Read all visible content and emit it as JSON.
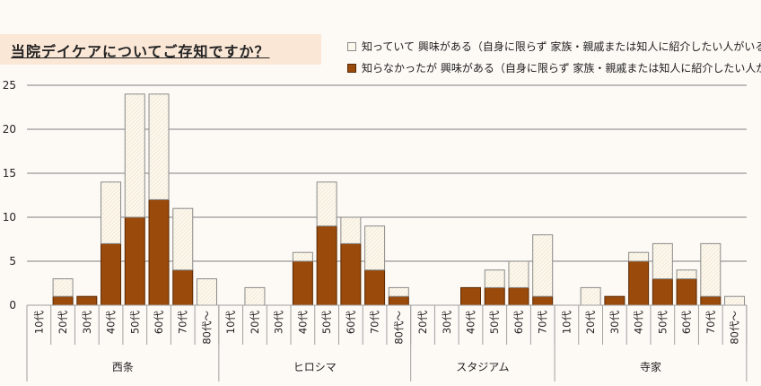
{
  "title": "当院デイケアについてご存知ですか？",
  "colors": {
    "background": "#fdfaf6",
    "title_bg": "#fbe7d6",
    "aware_fill": "#fdf8ec",
    "aware_border": "#8a8a8a",
    "unaware_fill": "#9a4a0b",
    "unaware_border": "#5a2a05",
    "grid": "#808080",
    "axis": "#a0a0a0",
    "text": "#222222"
  },
  "legend": [
    {
      "key": "aware",
      "label": "知っていて 興味がある（自身に限らず 家族・親戚または知人に紹介したい人がいる）"
    },
    {
      "key": "unaware",
      "label": "知らなかったが 興味がある（自身に限らず 家族・親戚または知人に紹介したい人がいる）"
    }
  ],
  "chart_data": {
    "type": "bar",
    "stacked": true,
    "title": "当院デイケアについてご存知ですか？",
    "xlabel": "",
    "ylabel": "",
    "ylim": [
      0,
      25
    ],
    "yticks": [
      0,
      5,
      10,
      15,
      20,
      25
    ],
    "grid": true,
    "legend_position": "top-right",
    "groups": [
      {
        "name": "西条",
        "categories": [
          "10代",
          "20代",
          "30代",
          "40代",
          "50代",
          "60代",
          "70代",
          "80代～"
        ]
      },
      {
        "name": "ヒロシマ",
        "categories": [
          "10代",
          "20代",
          "30代",
          "40代",
          "50代",
          "60代",
          "70代",
          "80代～"
        ]
      },
      {
        "name": "スタジアム",
        "categories": [
          "20代",
          "30代",
          "40代",
          "50代",
          "60代",
          "70代"
        ]
      },
      {
        "name": "寺家",
        "categories": [
          "10代",
          "20代",
          "30代",
          "40代",
          "50代",
          "60代",
          "70代",
          "80代～"
        ]
      }
    ],
    "series": [
      {
        "name": "知らなかったが 興味がある（自身に限らず 家族・親戚または知人に紹介したい人がいる）",
        "key": "unaware",
        "values": [
          0,
          1,
          1,
          7,
          10,
          12,
          4,
          0,
          0,
          0,
          0,
          5,
          9,
          7,
          4,
          1,
          0,
          0,
          2,
          2,
          2,
          1,
          0,
          0,
          1,
          5,
          3,
          3,
          1,
          0
        ]
      },
      {
        "name": "知っていて 興味がある（自身に限らず 家族・親戚または知人に紹介したい人がいる）",
        "key": "aware",
        "values": [
          0,
          2,
          0,
          7,
          14,
          12,
          7,
          3,
          0,
          2,
          0,
          1,
          5,
          3,
          5,
          1,
          0,
          0,
          0,
          2,
          3,
          7,
          0,
          2,
          0,
          1,
          4,
          1,
          6,
          1
        ]
      }
    ]
  }
}
